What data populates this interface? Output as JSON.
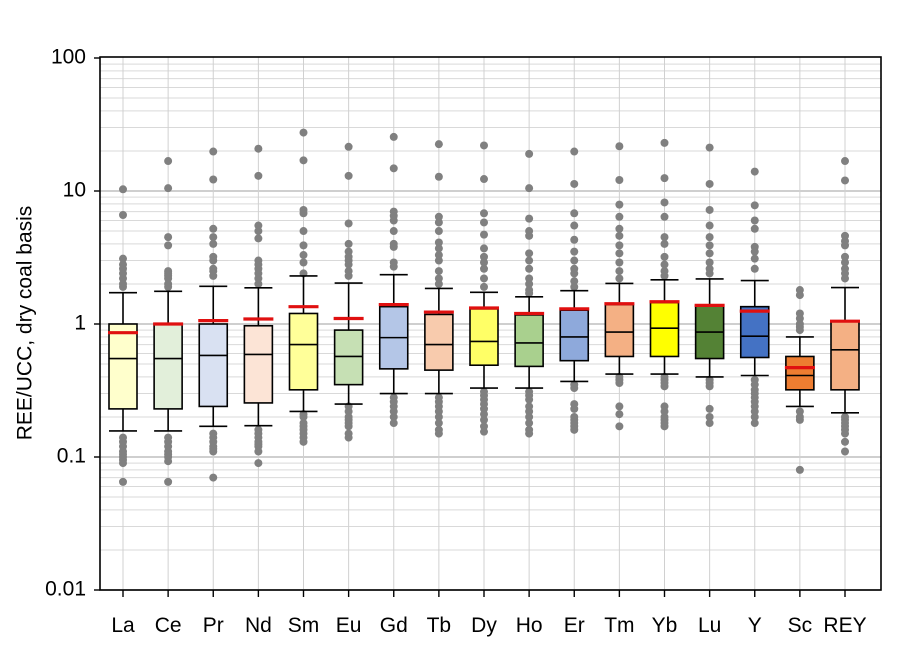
{
  "chart_data": {
    "type": "box",
    "title": "",
    "xlabel": "",
    "ylabel": "REE/UCC, dry coal basis",
    "yscale": "log",
    "ylim": [
      0.01,
      100
    ],
    "yticks": [
      "0.01",
      "0.1",
      "1",
      "10",
      "100"
    ],
    "grid": true,
    "legend": null,
    "categories": [
      "La",
      "Ce",
      "Pr",
      "Nd",
      "Sm",
      "Eu",
      "Gd",
      "Tb",
      "Dy",
      "Ho",
      "Er",
      "Tm",
      "Yb",
      "Lu",
      "Y",
      "Sc",
      "REY"
    ],
    "series": [
      {
        "name": "La",
        "color": "#FFFFCC",
        "q1": 0.23,
        "median": 0.55,
        "q3": 1.0,
        "whisker_low": 0.157,
        "whisker_high": 1.72,
        "mean": 0.86,
        "outliers": [
          10.3,
          6.6,
          3.1,
          2.8,
          2.6,
          2.4,
          2.2,
          2.0,
          1.9,
          0.14,
          0.13,
          0.12,
          0.11,
          0.105,
          0.1,
          0.095,
          0.09,
          0.065
        ]
      },
      {
        "name": "Ce",
        "color": "#E2EFDA",
        "q1": 0.23,
        "median": 0.55,
        "q3": 1.0,
        "whisker_low": 0.157,
        "whisker_high": 1.76,
        "mean": 1.0,
        "outliers": [
          16.8,
          10.5,
          4.5,
          3.9,
          2.5,
          2.4,
          2.3,
          2.2,
          2.0,
          1.9,
          0.14,
          0.13,
          0.12,
          0.11,
          0.105,
          0.1,
          0.093,
          0.065
        ]
      },
      {
        "name": "Pr",
        "color": "#D9E1F2",
        "q1": 0.24,
        "median": 0.58,
        "q3": 1.0,
        "whisker_low": 0.17,
        "whisker_high": 1.92,
        "mean": 1.06,
        "outliers": [
          19.8,
          12.2,
          5.2,
          4.5,
          4.0,
          3.2,
          3.0,
          2.6,
          2.5,
          2.3,
          0.15,
          0.14,
          0.13,
          0.12,
          0.115,
          0.11,
          0.07
        ]
      },
      {
        "name": "Nd",
        "color": "#FCE4D6",
        "q1": 0.255,
        "median": 0.59,
        "q3": 0.97,
        "whisker_low": 0.172,
        "whisker_high": 1.87,
        "mean": 1.09,
        "outliers": [
          20.8,
          13.0,
          5.5,
          5.0,
          4.4,
          3.0,
          2.8,
          2.6,
          2.4,
          2.2,
          2.0,
          0.16,
          0.15,
          0.14,
          0.13,
          0.125,
          0.12,
          0.11,
          0.09
        ]
      },
      {
        "name": "Sm",
        "color": "#FFFF99",
        "q1": 0.32,
        "median": 0.7,
        "q3": 1.2,
        "whisker_low": 0.22,
        "whisker_high": 2.3,
        "mean": 1.35,
        "outliers": [
          27.5,
          17.0,
          7.2,
          6.8,
          5.0,
          3.9,
          3.3,
          2.9,
          2.4,
          0.21,
          0.2,
          0.18,
          0.17,
          0.16,
          0.15,
          0.14,
          0.13
        ]
      },
      {
        "name": "Eu",
        "color": "#C6E0B4",
        "q1": 0.35,
        "median": 0.57,
        "q3": 0.9,
        "whisker_low": 0.25,
        "whisker_high": 2.03,
        "mean": 1.1,
        "outliers": [
          21.5,
          13.0,
          5.7,
          4.0,
          3.5,
          3.2,
          3.0,
          2.8,
          2.5,
          2.3,
          0.24,
          0.22,
          0.2,
          0.19,
          0.18,
          0.17,
          0.15,
          0.14
        ]
      },
      {
        "name": "Gd",
        "color": "#B4C6E7",
        "q1": 0.46,
        "median": 0.79,
        "q3": 1.35,
        "whisker_low": 0.3,
        "whisker_high": 2.35,
        "mean": 1.4,
        "outliers": [
          25.5,
          14.8,
          7.0,
          6.5,
          6.0,
          5.0,
          4.0,
          3.8,
          2.9,
          2.7,
          0.28,
          0.26,
          0.24,
          0.22,
          0.2,
          0.18
        ]
      },
      {
        "name": "Tb",
        "color": "#F8CBAD",
        "q1": 0.45,
        "median": 0.7,
        "q3": 1.18,
        "whisker_low": 0.3,
        "whisker_high": 1.85,
        "mean": 1.23,
        "outliers": [
          22.5,
          12.8,
          6.4,
          5.8,
          5.0,
          4.1,
          3.7,
          3.3,
          3.0,
          2.5,
          2.2,
          2.0,
          0.28,
          0.26,
          0.24,
          0.22,
          0.2,
          0.18,
          0.16,
          0.15
        ]
      },
      {
        "name": "Dy",
        "color": "#FFFF66",
        "q1": 0.49,
        "median": 0.74,
        "q3": 1.3,
        "whisker_low": 0.33,
        "whisker_high": 1.73,
        "mean": 1.32,
        "outliers": [
          22.0,
          12.3,
          6.8,
          5.8,
          4.7,
          3.7,
          3.2,
          2.9,
          2.6,
          2.2,
          1.9,
          0.31,
          0.29,
          0.27,
          0.25,
          0.23,
          0.21,
          0.19,
          0.17,
          0.155
        ]
      },
      {
        "name": "Ho",
        "color": "#A9D08E",
        "q1": 0.48,
        "median": 0.72,
        "q3": 1.17,
        "whisker_low": 0.33,
        "whisker_high": 1.6,
        "mean": 1.2,
        "outliers": [
          19.0,
          10.5,
          6.2,
          5.0,
          4.6,
          3.4,
          3.0,
          2.6,
          2.2,
          2.0,
          1.8,
          1.7,
          0.31,
          0.29,
          0.27,
          0.24,
          0.22,
          0.2,
          0.18,
          0.16,
          0.15
        ]
      },
      {
        "name": "Er",
        "color": "#8EA9DB",
        "q1": 0.53,
        "median": 0.8,
        "q3": 1.27,
        "whisker_low": 0.37,
        "whisker_high": 1.78,
        "mean": 1.3,
        "outliers": [
          19.8,
          11.3,
          6.8,
          5.5,
          4.3,
          3.5,
          3.0,
          2.6,
          2.4,
          2.1,
          1.9,
          0.35,
          0.33,
          0.25,
          0.23,
          0.2,
          0.19,
          0.18,
          0.17,
          0.16
        ]
      },
      {
        "name": "Tm",
        "color": "#F4B084",
        "q1": 0.57,
        "median": 0.87,
        "q3": 1.4,
        "whisker_low": 0.42,
        "whisker_high": 2.02,
        "mean": 1.42,
        "outliers": [
          21.7,
          12.1,
          7.9,
          6.4,
          5.2,
          4.6,
          3.9,
          3.4,
          2.9,
          2.5,
          2.2,
          0.4,
          0.38,
          0.36,
          0.24,
          0.21,
          0.17
        ]
      },
      {
        "name": "Yb",
        "color": "#FFFF00",
        "q1": 0.57,
        "median": 0.93,
        "q3": 1.45,
        "whisker_low": 0.42,
        "whisker_high": 2.15,
        "mean": 1.47,
        "outliers": [
          23.0,
          12.5,
          8.2,
          6.4,
          4.5,
          4.0,
          3.2,
          2.8,
          2.5,
          2.3,
          0.4,
          0.38,
          0.36,
          0.34,
          0.24,
          0.22,
          0.2,
          0.19,
          0.18,
          0.17
        ]
      },
      {
        "name": "Lu",
        "color": "#548235",
        "q1": 0.55,
        "median": 0.87,
        "q3": 1.38,
        "whisker_low": 0.4,
        "whisker_high": 2.18,
        "mean": 1.38,
        "outliers": [
          21.2,
          11.3,
          7.2,
          5.5,
          4.5,
          3.9,
          3.4,
          2.9,
          2.6,
          2.4,
          0.38,
          0.36,
          0.34,
          0.23,
          0.2,
          0.18
        ]
      },
      {
        "name": "Y",
        "color": "#4472C4",
        "q1": 0.56,
        "median": 0.81,
        "q3": 1.35,
        "whisker_low": 0.41,
        "whisker_high": 2.12,
        "mean": 1.25,
        "outliers": [
          14.0,
          7.8,
          6.0,
          5.2,
          3.8,
          3.5,
          3.1,
          2.6,
          0.38,
          0.35,
          0.32,
          0.3,
          0.28,
          0.26,
          0.24,
          0.22,
          0.2,
          0.18
        ]
      },
      {
        "name": "Sc",
        "color": "#ED7D31",
        "q1": 0.32,
        "median": 0.41,
        "q3": 0.57,
        "whisker_low": 0.24,
        "whisker_high": 0.8,
        "mean": 0.47,
        "outliers": [
          1.8,
          1.65,
          1.2,
          1.1,
          1.0,
          0.95,
          0.9,
          0.22,
          0.2,
          0.19,
          0.08
        ]
      },
      {
        "name": "REY",
        "color": "#F4B084",
        "q1": 0.32,
        "median": 0.64,
        "q3": 1.05,
        "whisker_low": 0.215,
        "whisker_high": 1.88,
        "mean": 1.05,
        "outliers": [
          16.8,
          12.0,
          4.6,
          4.2,
          3.9,
          3.2,
          2.9,
          2.6,
          2.4,
          2.2,
          0.2,
          0.19,
          0.18,
          0.17,
          0.16,
          0.15,
          0.13,
          0.11
        ]
      }
    ]
  }
}
